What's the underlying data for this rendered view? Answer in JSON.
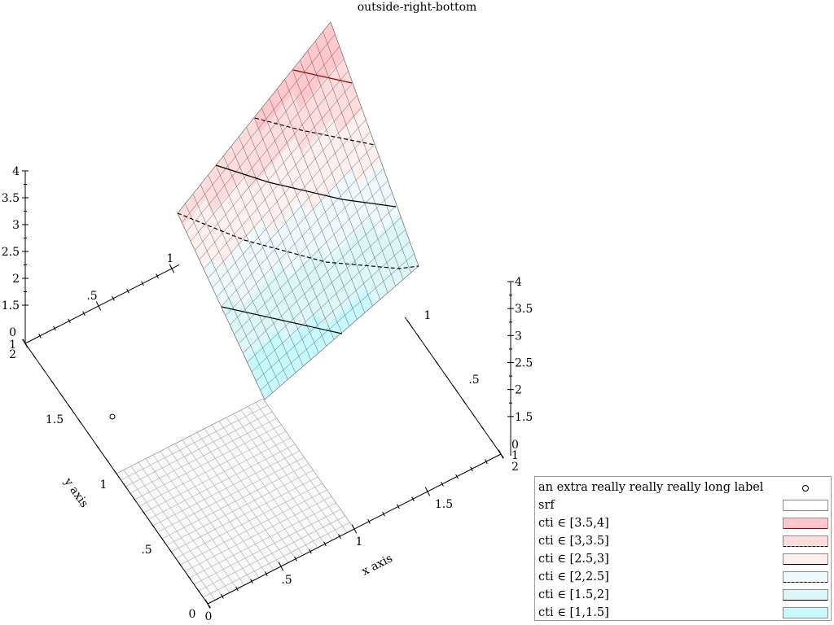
{
  "chart_data": {
    "type": "3d-surface-contour",
    "title": "outside-right-bottom",
    "xlabel": "x axis",
    "ylabel": "y axis",
    "zlabel": "",
    "xlim": [
      0,
      2
    ],
    "ylim": [
      0,
      2
    ],
    "zlim": [
      0,
      4
    ],
    "function": "z = x + y",
    "contour_levels": [
      1.5,
      2,
      2.5,
      3,
      3.5
    ],
    "x_ticks": [
      "0",
      ".5",
      "1",
      "1.5",
      "2"
    ],
    "y_ticks": [
      "0",
      ".5",
      "1",
      "1.5",
      "2"
    ],
    "x_ticks_back": [
      ".5",
      "1"
    ],
    "y_ticks_back": [
      ".5",
      "1"
    ],
    "z_ticks_left": [
      "0",
      "1.5",
      "2",
      "2.5",
      "3",
      "3.5",
      "4"
    ],
    "z_ticks_right": [
      "0",
      "1.5",
      "2",
      "2.5",
      "3",
      "3.5",
      "4"
    ],
    "z_ticks_left_extra": [
      "1",
      "2"
    ],
    "z_ticks_right_extra": [
      "1",
      "2"
    ],
    "extra_point": {
      "x": 0.2,
      "y": 1.5,
      "z": 0.1
    }
  },
  "legend": {
    "placement": "outside-right-bottom",
    "entries": [
      {
        "label": "an extra really really really long label",
        "kind": "point"
      },
      {
        "label": "srf",
        "kind": "swatch",
        "color": "#ffffff",
        "line": "none"
      },
      {
        "label": "cti ∈ [3.5,4]",
        "kind": "swatch",
        "color": "#ffc8cc",
        "line": "solid-red"
      },
      {
        "label": "cti ∈ [3,3.5]",
        "kind": "swatch",
        "color": "#ffdcdc",
        "line": "dashed"
      },
      {
        "label": "cti ∈ [2.5,3]",
        "kind": "swatch",
        "color": "#fff0ee",
        "line": "solid"
      },
      {
        "label": "cti ∈ [2,2.5]",
        "kind": "swatch",
        "color": "#eef9fb",
        "line": "dashed"
      },
      {
        "label": "cti ∈ [1.5,2]",
        "kind": "swatch",
        "color": "#dcf6fa",
        "line": "solid"
      },
      {
        "label": "cti ∈ [1,1.5]",
        "kind": "swatch",
        "color": "#c6fafe",
        "line": "none"
      }
    ]
  }
}
